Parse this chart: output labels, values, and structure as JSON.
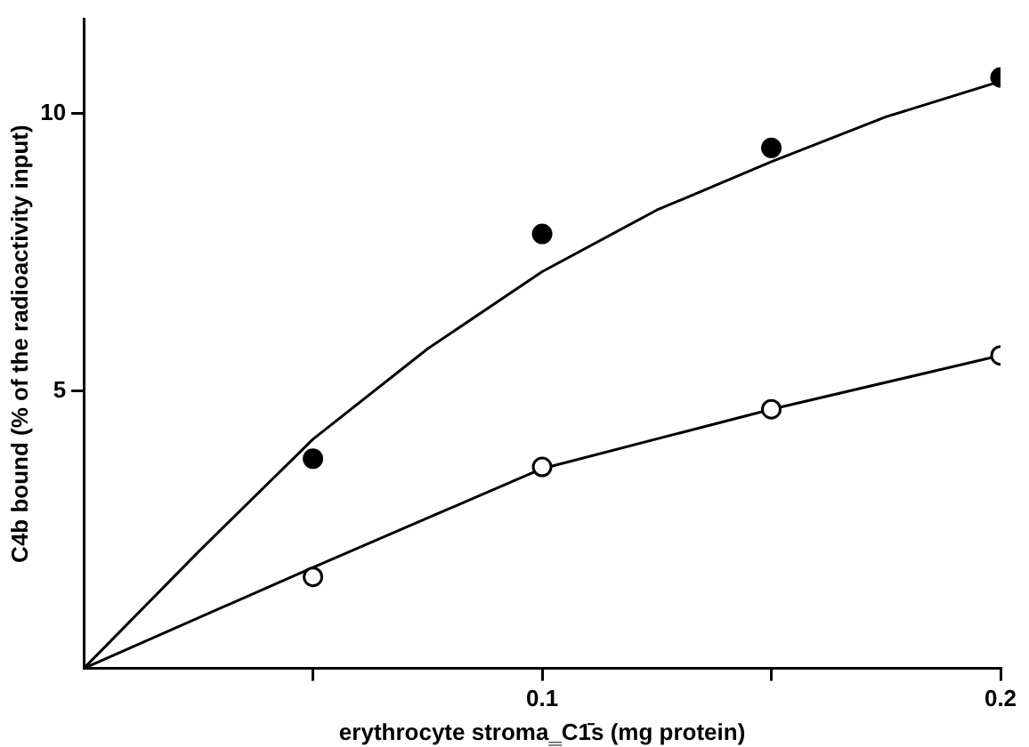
{
  "chart_data": {
    "type": "scatter",
    "xlabel": "erythrocyte stroma‗C1̄s (mg protein)",
    "ylabel": "C4b bound (% of the radioactivity input)",
    "xlim": [
      0,
      0.2
    ],
    "xticks": [
      {
        "value": 0.05,
        "label": null
      },
      0.1,
      {
        "value": 0.15,
        "label": null
      },
      0.2
    ],
    "ylim": [
      0,
      11.7
    ],
    "yticks": [
      5,
      10
    ],
    "grid": false,
    "legend": false,
    "marker": "circle",
    "series": [
      {
        "type": "line",
        "color": "#000000",
        "x": [
          0,
          0.025,
          0.05,
          0.075,
          0.1,
          0.125,
          0.15,
          0.175,
          0.2
        ],
        "values": [
          0,
          2.1,
          4.13,
          5.76,
          7.15,
          8.26,
          9.13,
          9.94,
          10.58
        ],
        "marker": "none"
      },
      {
        "type": "line",
        "color": "#000000",
        "x": [
          0,
          0.05,
          0.1,
          0.15,
          0.2
        ],
        "values": [
          0,
          1.82,
          3.6,
          4.67,
          5.64
        ],
        "marker": "none"
      },
      {
        "color": "#000000",
        "x": [
          0.05,
          0.1,
          0.15,
          0.2
        ],
        "values": [
          3.78,
          7.83,
          9.38,
          10.65
        ]
      },
      {
        "color": "#ffffff",
        "x": [
          0.05,
          0.1,
          0.15,
          0.2
        ],
        "values": [
          1.65,
          3.63,
          4.67,
          5.64
        ]
      }
    ]
  }
}
